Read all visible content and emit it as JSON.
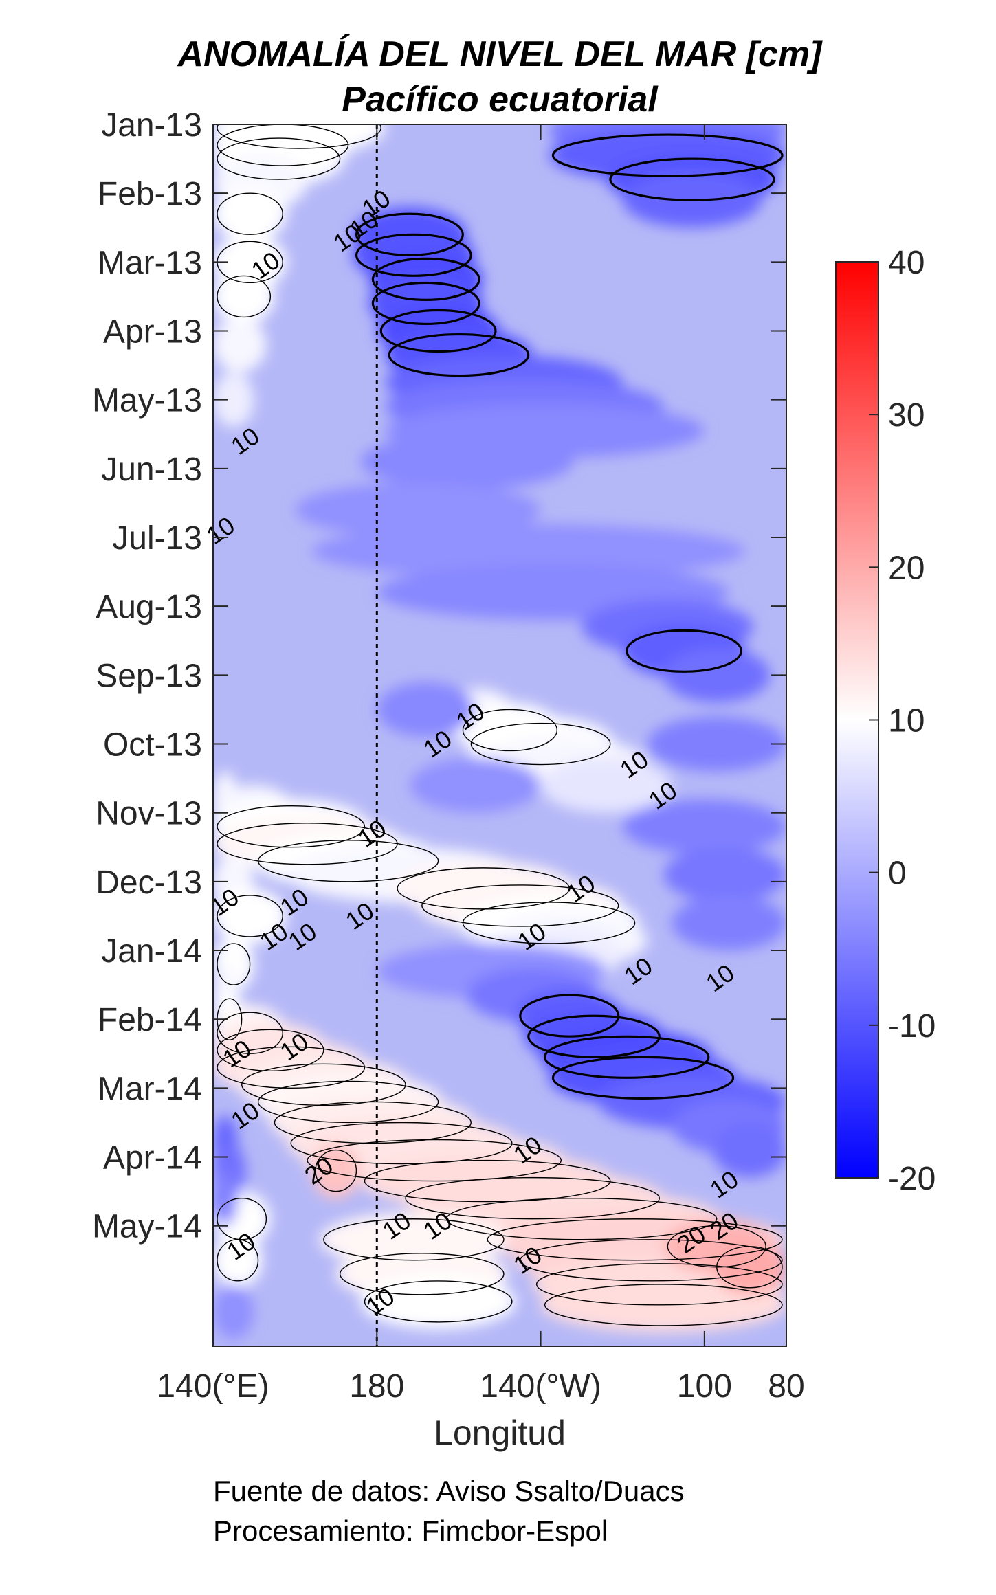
{
  "chart_data": {
    "type": "heatmap",
    "title": "ANOMALÍA DEL NIVEL DEL MAR [cm]",
    "subtitle": "Pacífico ecuatorial",
    "xlabel": "Longitud",
    "ylabel": "",
    "x_ticks": [
      {
        "value": 140,
        "label": "140(°E)"
      },
      {
        "value": 180,
        "label": "180"
      },
      {
        "value": 220,
        "label": "140(°W)"
      },
      {
        "value": 260,
        "label": "100"
      },
      {
        "value": 280,
        "label": "80"
      }
    ],
    "xlim": [
      140,
      280
    ],
    "y_ticks": [
      "Jan-13",
      "Feb-13",
      "Mar-13",
      "Apr-13",
      "May-13",
      "Jun-13",
      "Jul-13",
      "Aug-13",
      "Sep-13",
      "Oct-13",
      "Nov-13",
      "Dec-13",
      "Jan-14",
      "Feb-14",
      "Mar-14",
      "Apr-14",
      "May-14"
    ],
    "ylim": [
      "Jan-13",
      "Jun-14"
    ],
    "y_direction": "time increases downward",
    "reference_line": {
      "x": 180,
      "style": "dotted"
    },
    "colorbar": {
      "min": -20,
      "max": 40,
      "ticks": [
        -20,
        -10,
        0,
        10,
        20,
        30,
        40
      ],
      "colormap": [
        "#0000ff",
        "#ffffff",
        "#ff0000"
      ],
      "white_at": 10
    },
    "contour_levels": [
      -10,
      10,
      20
    ],
    "contour_labels": [
      {
        "x": 181,
        "t": 1.25,
        "text": "10"
      },
      {
        "x": 178,
        "t": 1.55,
        "text": "10"
      },
      {
        "x": 174,
        "t": 1.75,
        "text": "10"
      },
      {
        "x": 154,
        "t": 2.15,
        "text": "10"
      },
      {
        "x": 149,
        "t": 4.7,
        "text": "10"
      },
      {
        "x": 143,
        "t": 6.0,
        "text": "10"
      },
      {
        "x": 204,
        "t": 8.7,
        "text": "10"
      },
      {
        "x": 196,
        "t": 9.1,
        "text": "10"
      },
      {
        "x": 244,
        "t": 9.4,
        "text": "10"
      },
      {
        "x": 251,
        "t": 9.85,
        "text": "10"
      },
      {
        "x": 180,
        "t": 10.4,
        "text": "10"
      },
      {
        "x": 144,
        "t": 11.4,
        "text": "10"
      },
      {
        "x": 161,
        "t": 11.4,
        "text": "10"
      },
      {
        "x": 177,
        "t": 11.6,
        "text": "10"
      },
      {
        "x": 156,
        "t": 11.9,
        "text": "10"
      },
      {
        "x": 163,
        "t": 11.9,
        "text": "10"
      },
      {
        "x": 231,
        "t": 11.2,
        "text": "10"
      },
      {
        "x": 219,
        "t": 11.9,
        "text": "10"
      },
      {
        "x": 245,
        "t": 12.4,
        "text": "10"
      },
      {
        "x": 265,
        "t": 12.5,
        "text": "10"
      },
      {
        "x": 147,
        "t": 13.6,
        "text": "10"
      },
      {
        "x": 161,
        "t": 13.5,
        "text": "10"
      },
      {
        "x": 149,
        "t": 14.5,
        "text": "10"
      },
      {
        "x": 167,
        "t": 15.3,
        "text": "20"
      },
      {
        "x": 218,
        "t": 15.0,
        "text": "10"
      },
      {
        "x": 266,
        "t": 15.5,
        "text": "10"
      },
      {
        "x": 186,
        "t": 16.1,
        "text": "10"
      },
      {
        "x": 196,
        "t": 16.1,
        "text": "10"
      },
      {
        "x": 258,
        "t": 16.3,
        "text": "20"
      },
      {
        "x": 266,
        "t": 16.1,
        "text": "20"
      },
      {
        "x": 148,
        "t": 16.4,
        "text": "10"
      },
      {
        "x": 218,
        "t": 16.6,
        "text": "10"
      },
      {
        "x": 182,
        "t": 17.2,
        "text": "10"
      }
    ],
    "bands": [
      {
        "t": 0.05,
        "xa": 140,
        "xb": 182,
        "level": 10
      },
      {
        "t": 0.3,
        "xa": 140,
        "xb": 174,
        "level": 10
      },
      {
        "t": 0.5,
        "xa": 140,
        "xb": 172,
        "level": 10
      },
      {
        "t": 0.85,
        "xa": 140,
        "xb": 163,
        "level": 9
      },
      {
        "t": 1.3,
        "xa": 140,
        "xb": 158,
        "level": 10
      },
      {
        "t": 2.0,
        "xa": 140,
        "xb": 158,
        "level": 10
      },
      {
        "t": 2.5,
        "xa": 140,
        "xb": 155,
        "level": 10
      },
      {
        "t": 3.2,
        "xa": 140,
        "xb": 153,
        "level": 9
      },
      {
        "t": 4.0,
        "xa": 140,
        "xb": 150,
        "level": 8
      },
      {
        "t": 8.6,
        "xa": 196,
        "xb": 214,
        "level": 9
      },
      {
        "t": 8.8,
        "xa": 200,
        "xb": 225,
        "level": 10
      },
      {
        "t": 9.0,
        "xa": 202,
        "xb": 238,
        "level": 10
      },
      {
        "t": 9.3,
        "xa": 205,
        "xb": 246,
        "level": 9
      },
      {
        "t": 9.6,
        "xa": 220,
        "xb": 252,
        "level": 7
      },
      {
        "t": 9.8,
        "xa": 140,
        "xb": 146,
        "level": 9
      },
      {
        "t": 10.0,
        "xa": 140,
        "xb": 160,
        "level": 9
      },
      {
        "t": 10.2,
        "xa": 140,
        "xb": 178,
        "level": 10
      },
      {
        "t": 10.45,
        "xa": 140,
        "xb": 186,
        "level": 11
      },
      {
        "t": 10.7,
        "xa": 150,
        "xb": 196,
        "level": 10
      },
      {
        "t": 10.9,
        "xa": 158,
        "xb": 216,
        "level": 9
      },
      {
        "t": 11.1,
        "xa": 184,
        "xb": 228,
        "level": 11
      },
      {
        "t": 11.35,
        "xa": 190,
        "xb": 240,
        "level": 11
      },
      {
        "t": 11.6,
        "xa": 200,
        "xb": 244,
        "level": 10
      },
      {
        "t": 11.85,
        "xa": 208,
        "xb": 246,
        "level": 9
      },
      {
        "t": 12.05,
        "xa": 214,
        "xb": 240,
        "level": 8
      },
      {
        "t": 11.0,
        "xa": 140,
        "xb": 150,
        "level": 9
      },
      {
        "t": 11.5,
        "xa": 140,
        "xb": 158,
        "level": 10
      },
      {
        "t": 12.2,
        "xa": 140,
        "xb": 150,
        "level": 10
      },
      {
        "t": 12.6,
        "xa": 140,
        "xb": 146,
        "level": 9
      },
      {
        "t": 13.0,
        "xa": 140,
        "xb": 148,
        "level": 10
      },
      {
        "t": 13.2,
        "xa": 140,
        "xb": 158,
        "level": 11
      },
      {
        "t": 13.45,
        "xa": 140,
        "xb": 168,
        "level": 13
      },
      {
        "t": 13.7,
        "xa": 140,
        "xb": 178,
        "level": 13
      },
      {
        "t": 13.95,
        "xa": 146,
        "xb": 188,
        "level": 12
      },
      {
        "t": 14.2,
        "xa": 150,
        "xb": 196,
        "level": 11
      },
      {
        "t": 14.5,
        "xa": 154,
        "xb": 204,
        "level": 12
      },
      {
        "t": 14.8,
        "xa": 158,
        "xb": 214,
        "level": 13
      },
      {
        "t": 15.05,
        "xa": 162,
        "xb": 226,
        "level": 13
      },
      {
        "t": 15.2,
        "xa": 164,
        "xb": 176,
        "level": 17
      },
      {
        "t": 15.35,
        "xa": 176,
        "xb": 238,
        "level": 14
      },
      {
        "t": 15.6,
        "xa": 186,
        "xb": 250,
        "level": 14
      },
      {
        "t": 15.9,
        "xa": 196,
        "xb": 264,
        "level": 14
      },
      {
        "t": 16.2,
        "xa": 206,
        "xb": 280,
        "level": 15
      },
      {
        "t": 16.5,
        "xa": 214,
        "xb": 280,
        "level": 15
      },
      {
        "t": 16.85,
        "xa": 218,
        "xb": 280,
        "level": 14
      },
      {
        "t": 17.15,
        "xa": 220,
        "xb": 280,
        "level": 14
      },
      {
        "t": 16.3,
        "xa": 250,
        "xb": 276,
        "level": 19
      },
      {
        "t": 16.6,
        "xa": 262,
        "xb": 280,
        "level": 20
      },
      {
        "t": 15.9,
        "xa": 140,
        "xb": 154,
        "level": 10
      },
      {
        "t": 16.5,
        "xa": 140,
        "xb": 152,
        "level": 10
      },
      {
        "t": 16.2,
        "xa": 166,
        "xb": 212,
        "level": 11
      },
      {
        "t": 16.7,
        "xa": 170,
        "xb": 212,
        "level": 11
      },
      {
        "t": 17.1,
        "xa": 176,
        "xb": 214,
        "level": 10
      },
      {
        "t": 0.1,
        "xa": 222,
        "xb": 280,
        "level": -6
      },
      {
        "t": 0.45,
        "xa": 222,
        "xb": 280,
        "level": -9
      },
      {
        "t": 0.8,
        "xa": 236,
        "xb": 278,
        "level": -10
      },
      {
        "t": 1.1,
        "xa": 240,
        "xb": 274,
        "level": -8
      },
      {
        "t": 1.6,
        "xa": 174,
        "xb": 202,
        "level": -10
      },
      {
        "t": 1.9,
        "xa": 174,
        "xb": 204,
        "level": -10
      },
      {
        "t": 2.25,
        "xa": 178,
        "xb": 206,
        "level": -11
      },
      {
        "t": 2.6,
        "xa": 178,
        "xb": 206,
        "level": -10
      },
      {
        "t": 3.0,
        "xa": 180,
        "xb": 210,
        "level": -11
      },
      {
        "t": 3.35,
        "xa": 182,
        "xb": 218,
        "level": -10
      },
      {
        "t": 3.75,
        "xa": 182,
        "xb": 240,
        "level": -8
      },
      {
        "t": 4.1,
        "xa": 182,
        "xb": 250,
        "level": -6
      },
      {
        "t": 4.45,
        "xa": 182,
        "xb": 260,
        "level": -4
      },
      {
        "t": 4.9,
        "xa": 176,
        "xb": 228,
        "level": -4
      },
      {
        "t": 5.6,
        "xa": 160,
        "xb": 220,
        "level": -3
      },
      {
        "t": 6.2,
        "xa": 164,
        "xb": 270,
        "level": -3
      },
      {
        "t": 6.8,
        "xa": 180,
        "xb": 266,
        "level": -4
      },
      {
        "t": 7.3,
        "xa": 230,
        "xb": 272,
        "level": -7
      },
      {
        "t": 7.65,
        "xa": 240,
        "xb": 270,
        "level": -9
      },
      {
        "t": 8.0,
        "xa": 250,
        "xb": 276,
        "level": -7
      },
      {
        "t": 8.5,
        "xa": 180,
        "xb": 204,
        "level": -4
      },
      {
        "t": 9.0,
        "xa": 246,
        "xb": 280,
        "level": -5
      },
      {
        "t": 9.6,
        "xa": 188,
        "xb": 220,
        "level": -3
      },
      {
        "t": 10.2,
        "xa": 240,
        "xb": 280,
        "level": -5
      },
      {
        "t": 10.9,
        "xa": 250,
        "xb": 280,
        "level": -6
      },
      {
        "t": 11.6,
        "xa": 252,
        "xb": 280,
        "level": -5
      },
      {
        "t": 12.3,
        "xa": 180,
        "xb": 236,
        "level": -3
      },
      {
        "t": 12.65,
        "xa": 202,
        "xb": 234,
        "level": -6
      },
      {
        "t": 12.95,
        "xa": 214,
        "xb": 240,
        "level": -9
      },
      {
        "t": 13.25,
        "xa": 216,
        "xb": 250,
        "level": -10
      },
      {
        "t": 13.55,
        "xa": 220,
        "xb": 262,
        "level": -11
      },
      {
        "t": 13.85,
        "xa": 222,
        "xb": 268,
        "level": -10
      },
      {
        "t": 14.2,
        "xa": 234,
        "xb": 280,
        "level": -8
      },
      {
        "t": 14.55,
        "xa": 252,
        "xb": 280,
        "level": -6
      },
      {
        "t": 14.9,
        "xa": 262,
        "xb": 280,
        "level": -7
      },
      {
        "t": 14.8,
        "xa": 140,
        "xb": 146,
        "level": -8
      },
      {
        "t": 15.2,
        "xa": 140,
        "xb": 148,
        "level": -7
      },
      {
        "t": 15.6,
        "xa": 140,
        "xb": 146,
        "level": -5
      },
      {
        "t": 17.25,
        "xa": 140,
        "xb": 150,
        "level": -3
      }
    ]
  },
  "footnotes": {
    "line1": "Fuente de datos: Aviso Ssalto/Duacs",
    "line2": "Procesamiento: Fimcbor-Espol"
  }
}
